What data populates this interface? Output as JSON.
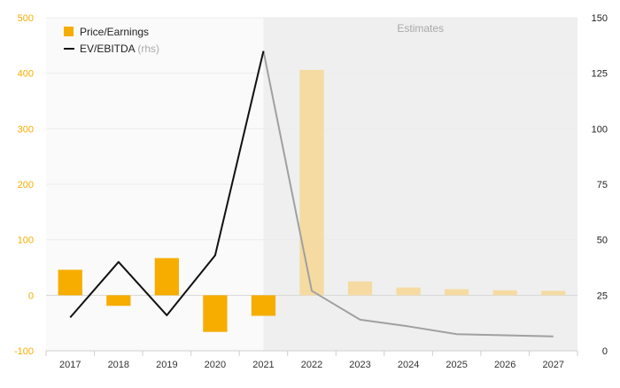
{
  "chart_data": {
    "type": "bar",
    "categories": [
      "2017",
      "2018",
      "2019",
      "2020",
      "2021",
      "2022",
      "2023",
      "2024",
      "2025",
      "2026",
      "2027"
    ],
    "series": [
      {
        "name": "Price/Earnings",
        "type": "bar",
        "axis": "left",
        "values": [
          46,
          -19,
          67,
          -66,
          -37,
          406,
          25,
          14,
          11,
          9,
          8
        ]
      },
      {
        "name": "EV/EBITDA",
        "name_suffix": "(rhs)",
        "type": "line",
        "axis": "right",
        "values": [
          15,
          40,
          16,
          43,
          135,
          27,
          14,
          11,
          7.5,
          7,
          6.5
        ]
      }
    ],
    "y_left": {
      "min": -100,
      "max": 500,
      "ticks": [
        -100,
        0,
        100,
        200,
        300,
        400,
        500
      ]
    },
    "y_right": {
      "min": 0,
      "max": 150,
      "ticks": [
        0,
        25,
        50,
        75,
        100,
        125,
        150
      ]
    },
    "estimates_from": "2022",
    "estimates_label": "Estimates",
    "legend_position": "top-left",
    "grid": true,
    "colors": {
      "bar": "#f6ad00",
      "bar_estimate": "#f5dba2",
      "line": "#111111",
      "line_estimate": "#a0a0a0",
      "estimate_band": "#efefef",
      "left_axis_text": "#f6ad00",
      "right_axis_text": "#222222"
    }
  }
}
